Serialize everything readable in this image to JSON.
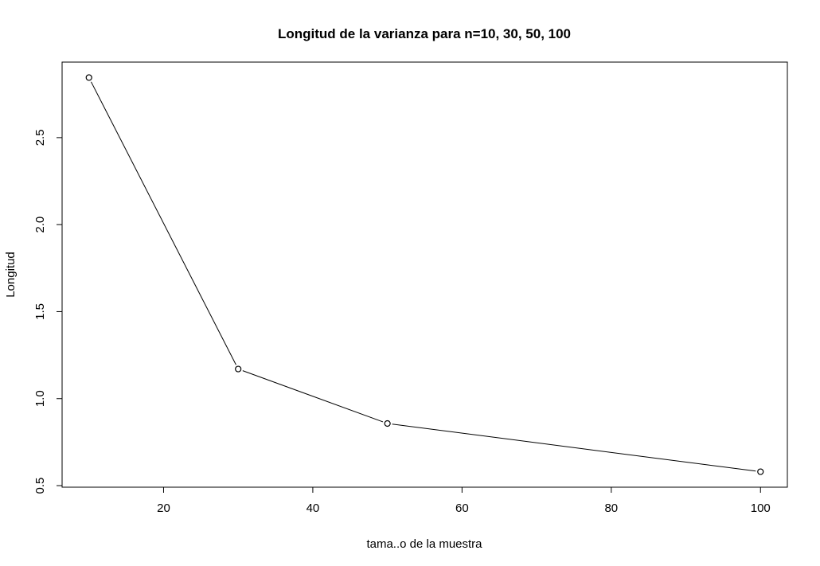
{
  "chart_data": {
    "type": "line",
    "title": "Longitud de la varianza para n=10, 30, 50, 100",
    "xlabel": "tama..o de la muestra",
    "ylabel": "Longitud",
    "x": [
      10,
      30,
      50,
      100
    ],
    "y": [
      2.845,
      1.17,
      0.857,
      0.58
    ],
    "xlim": [
      6.4,
      103.6
    ],
    "ylim": [
      0.491,
      2.934
    ],
    "xticks": [
      20,
      40,
      60,
      80,
      100
    ],
    "yticks": [
      0.5,
      1.0,
      1.5,
      2.0,
      2.5
    ],
    "xtick_labels": [
      "20",
      "40",
      "60",
      "80",
      "100"
    ],
    "ytick_labels": [
      "0.5",
      "1.0",
      "1.5",
      "2.0",
      "2.5"
    ],
    "grid": false,
    "marker": "open-circle",
    "line_color": "#000000"
  }
}
